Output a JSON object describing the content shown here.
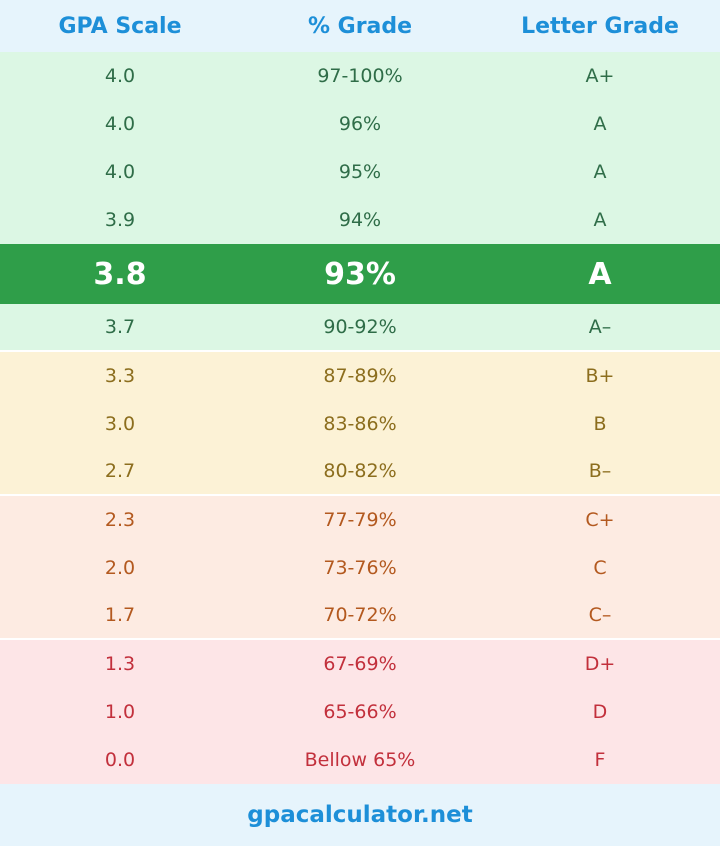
{
  "header": {
    "columns": [
      "GPA Scale",
      "% Grade",
      "Letter Grade"
    ]
  },
  "table": {
    "rows": [
      [
        "4.0",
        "97-100%",
        "A+"
      ],
      [
        "4.0",
        "96%",
        "A"
      ],
      [
        "4.0",
        "95%",
        "A"
      ],
      [
        "3.9",
        "94%",
        "A"
      ],
      [
        "3.8",
        "93%",
        "A"
      ],
      [
        "3.7",
        "90-92%",
        "A–"
      ],
      [
        "3.3",
        "87-89%",
        "B+"
      ],
      [
        "3.0",
        "83-86%",
        "B"
      ],
      [
        "2.7",
        "80-82%",
        "B–"
      ],
      [
        "2.3",
        "77-79%",
        "C+"
      ],
      [
        "2.0",
        "73-76%",
        "C"
      ],
      [
        "1.7",
        "70-72%",
        "C–"
      ],
      [
        "1.3",
        "67-69%",
        "D+"
      ],
      [
        "1.0",
        "65-66%",
        "D"
      ],
      [
        "0.0",
        "Bellow 65%",
        "F"
      ]
    ]
  },
  "footer": {
    "site": "gpacalculator.net"
  }
}
